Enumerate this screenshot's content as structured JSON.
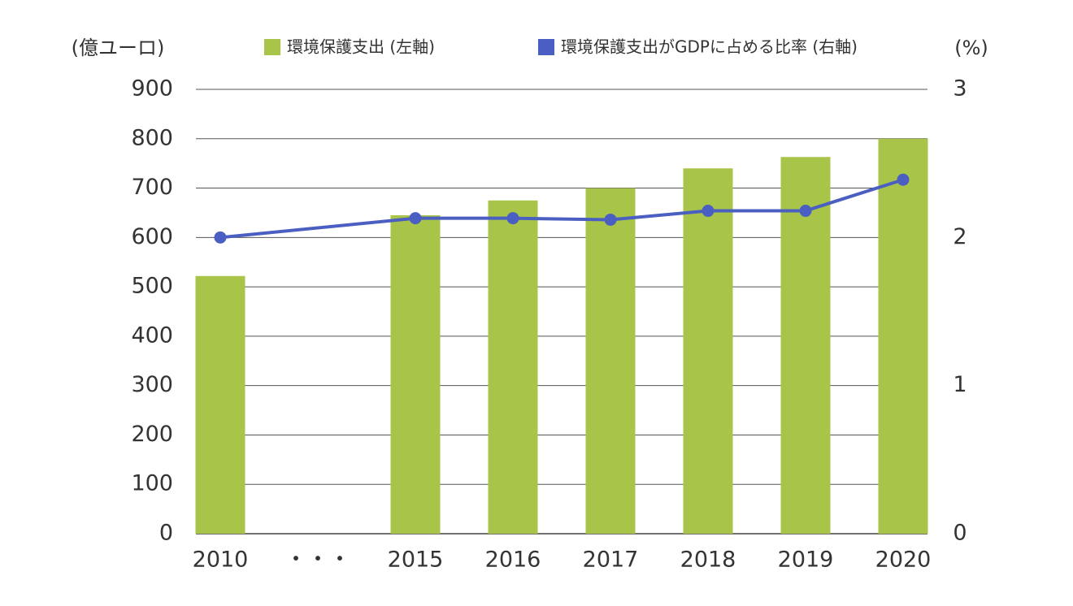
{
  "chart_data": {
    "type": "bar",
    "categories": [
      "2010",
      "・・・",
      "2015",
      "2016",
      "2017",
      "2018",
      "2019",
      "2020"
    ],
    "series": [
      {
        "name": "環境保護支出 (左軸)",
        "type": "bar",
        "color": "#a8c54a",
        "values": [
          522,
          null,
          645,
          675,
          700,
          740,
          763,
          800
        ]
      },
      {
        "name": "環境保護支出がGDPに占める比率 (右軸)",
        "type": "line",
        "axis": "y2",
        "color": "#4a5fc1",
        "values": [
          2.0,
          null,
          2.13,
          2.13,
          2.12,
          2.18,
          2.18,
          2.39
        ]
      }
    ],
    "ylabel": "(億ユーロ)",
    "y2label": "(%)",
    "ylim": [
      0,
      900
    ],
    "yticks": [
      0,
      100,
      200,
      300,
      400,
      500,
      600,
      700,
      800,
      900
    ],
    "y2lim": [
      0,
      3
    ],
    "y2ticks": [
      0,
      1,
      2,
      3
    ],
    "grid": true,
    "legend": "top"
  }
}
